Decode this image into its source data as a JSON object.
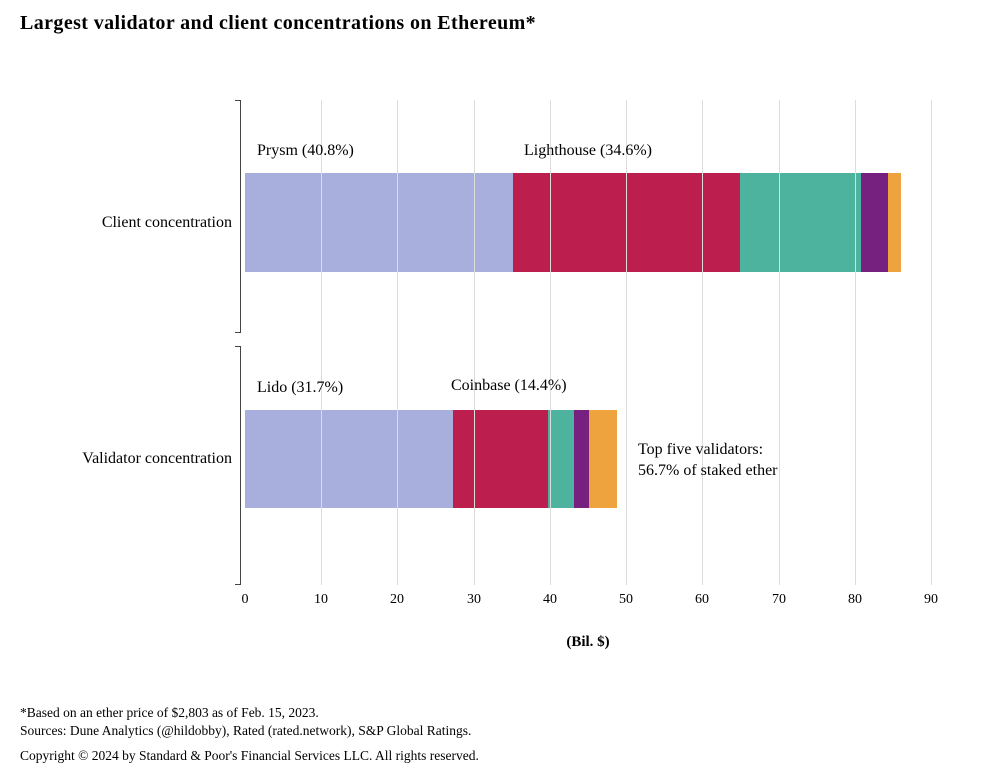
{
  "title": "Largest validator and client concentrations on Ethereum*",
  "chart_data": {
    "type": "bar",
    "orientation": "horizontal",
    "stacked": true,
    "title": "Largest validator and client concentrations on Ethereum*",
    "xlabel": "(Bil. $)",
    "xlim": [
      0,
      90
    ],
    "xticks": [
      0,
      10,
      20,
      30,
      40,
      50,
      60,
      70,
      80,
      90
    ],
    "grid": "vertical",
    "legend": "none",
    "categories": [
      "Client concentration",
      "Validator concentration"
    ],
    "bars": [
      {
        "category": "Client concentration",
        "total": 86.0,
        "segments": [
          {
            "label": "Prysm (40.8%)",
            "value": 35.1,
            "color": "#a9afdc"
          },
          {
            "label": "Lighthouse (34.6%)",
            "value": 29.8,
            "color": "#bc1e4e"
          },
          {
            "label": "",
            "value": 15.9,
            "color": "#4db39f"
          },
          {
            "label": "",
            "value": 3.6,
            "color": "#762180"
          },
          {
            "label": "",
            "value": 1.6,
            "color": "#eea33f"
          }
        ]
      },
      {
        "category": "Validator concentration",
        "total": 48.8,
        "segments": [
          {
            "label": "Lido (31.7%)",
            "value": 27.3,
            "color": "#a9afdc"
          },
          {
            "label": "Coinbase (14.4%)",
            "value": 12.4,
            "color": "#bc1e4e"
          },
          {
            "label": "",
            "value": 3.5,
            "color": "#4db39f"
          },
          {
            "label": "",
            "value": 1.9,
            "color": "#762180"
          },
          {
            "label": "",
            "value": 3.7,
            "color": "#eea33f"
          }
        ]
      }
    ],
    "annotation": "Top five validators: 56.7% of staked ether"
  },
  "callouts": {
    "prysm": "Prysm (40.8%)",
    "lighthouse": "Lighthouse (34.6%)",
    "lido": "Lido (31.7%)",
    "coinbase": "Coinbase (14.4%)",
    "annotation_line1": "Top five validators:",
    "annotation_line2": "56.7% of staked ether"
  },
  "footnotes": {
    "note": "*Based on an ether price of $2,803 as of Feb. 15, 2023.",
    "sources": "Sources: Dune Analytics (@hildobby), Rated (rated.network), S&P Global Ratings.",
    "copyright": "Copyright © 2024 by Standard & Poor's Financial Services LLC. All rights reserved."
  }
}
